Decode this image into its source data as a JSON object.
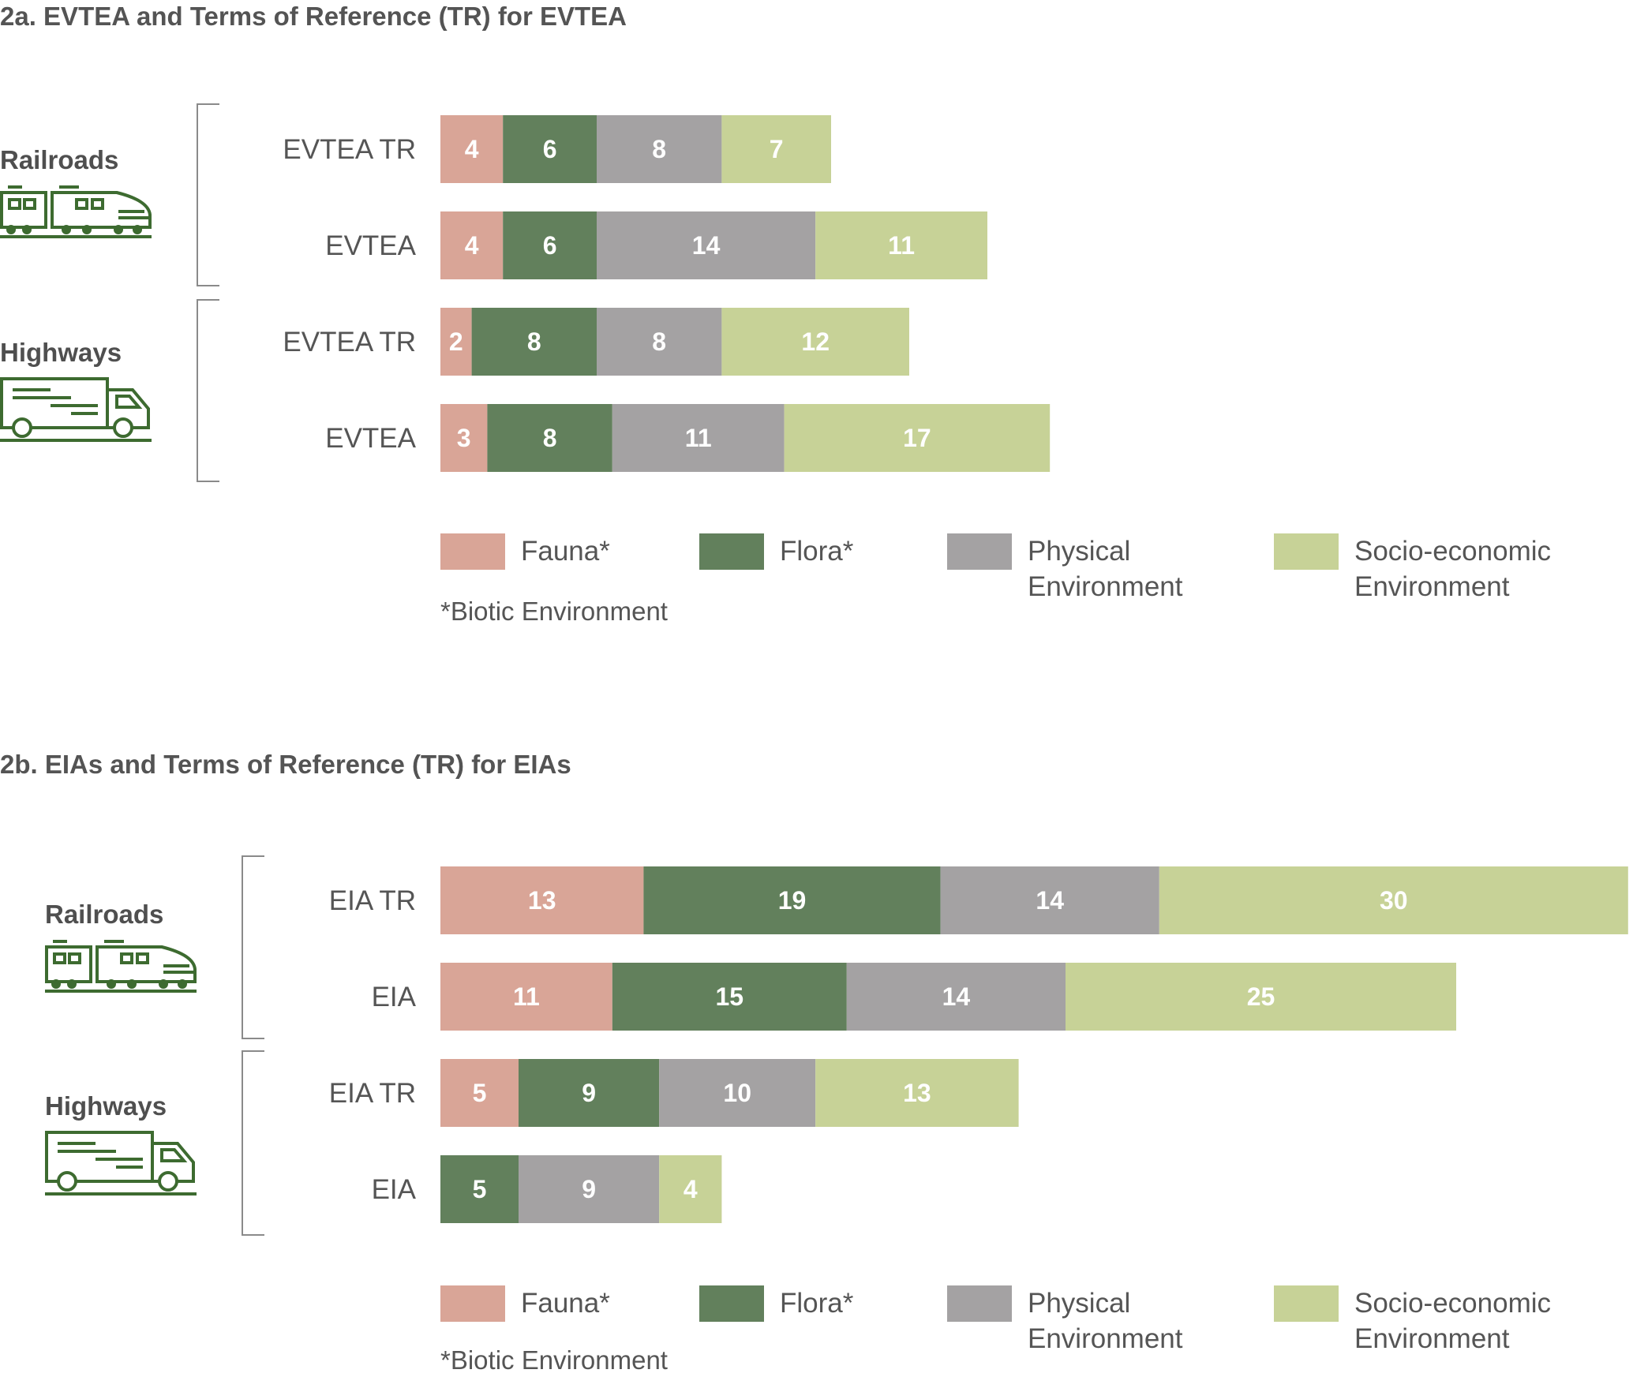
{
  "colors": {
    "fauna": "#d9a597",
    "flora": "#62805c",
    "physical": "#a4a2a3",
    "socio": "#c7d297",
    "icon": "#3d6b30",
    "bracket": "#8a8a8a"
  },
  "legend": {
    "items": [
      {
        "key": "fauna",
        "lines": [
          "Fauna*"
        ]
      },
      {
        "key": "flora",
        "lines": [
          "Flora*"
        ]
      },
      {
        "key": "physical",
        "lines": [
          "Physical",
          "Environment"
        ]
      },
      {
        "key": "socio",
        "lines": [
          "Socio-economic",
          "Environment"
        ]
      }
    ],
    "note": "*Biotic Environment"
  },
  "chart_data": [
    {
      "type": "bar",
      "orientation": "horizontal",
      "stacked": true,
      "title": "2a. EVTEA and Terms of Reference (TR) for EVTEA",
      "series_keys": [
        "fauna",
        "flora",
        "physical",
        "socio"
      ],
      "series_names": [
        "Fauna*",
        "Flora*",
        "Physical Environment",
        "Socio-economic Environment"
      ],
      "groups": [
        {
          "name": "Railroads",
          "icon": "train-icon",
          "rows": [
            {
              "label": "EVTEA TR",
              "values": [
                4,
                6,
                8,
                7
              ]
            },
            {
              "label": "EVTEA",
              "values": [
                4,
                6,
                14,
                11
              ]
            }
          ]
        },
        {
          "name": "Highways",
          "icon": "truck-icon",
          "rows": [
            {
              "label": "EVTEA TR",
              "values": [
                2,
                8,
                8,
                12
              ]
            },
            {
              "label": "EVTEA",
              "values": [
                3,
                8,
                11,
                17
              ]
            }
          ]
        }
      ]
    },
    {
      "type": "bar",
      "orientation": "horizontal",
      "stacked": true,
      "title": "2b. EIAs and Terms of Reference (TR) for EIAs",
      "series_keys": [
        "fauna",
        "flora",
        "physical",
        "socio"
      ],
      "series_names": [
        "Fauna*",
        "Flora*",
        "Physical Environment",
        "Socio-economic Environment"
      ],
      "groups": [
        {
          "name": "Railroads",
          "icon": "train-icon",
          "rows": [
            {
              "label": "EIA TR",
              "values": [
                13,
                19,
                14,
                30
              ]
            },
            {
              "label": "EIA",
              "values": [
                11,
                15,
                14,
                25
              ]
            }
          ]
        },
        {
          "name": "Highways",
          "icon": "truck-icon",
          "rows": [
            {
              "label": "EIA TR",
              "values": [
                5,
                9,
                10,
                13
              ]
            },
            {
              "label": "EIA",
              "values": [
                0,
                5,
                9,
                4
              ]
            }
          ]
        }
      ]
    }
  ]
}
